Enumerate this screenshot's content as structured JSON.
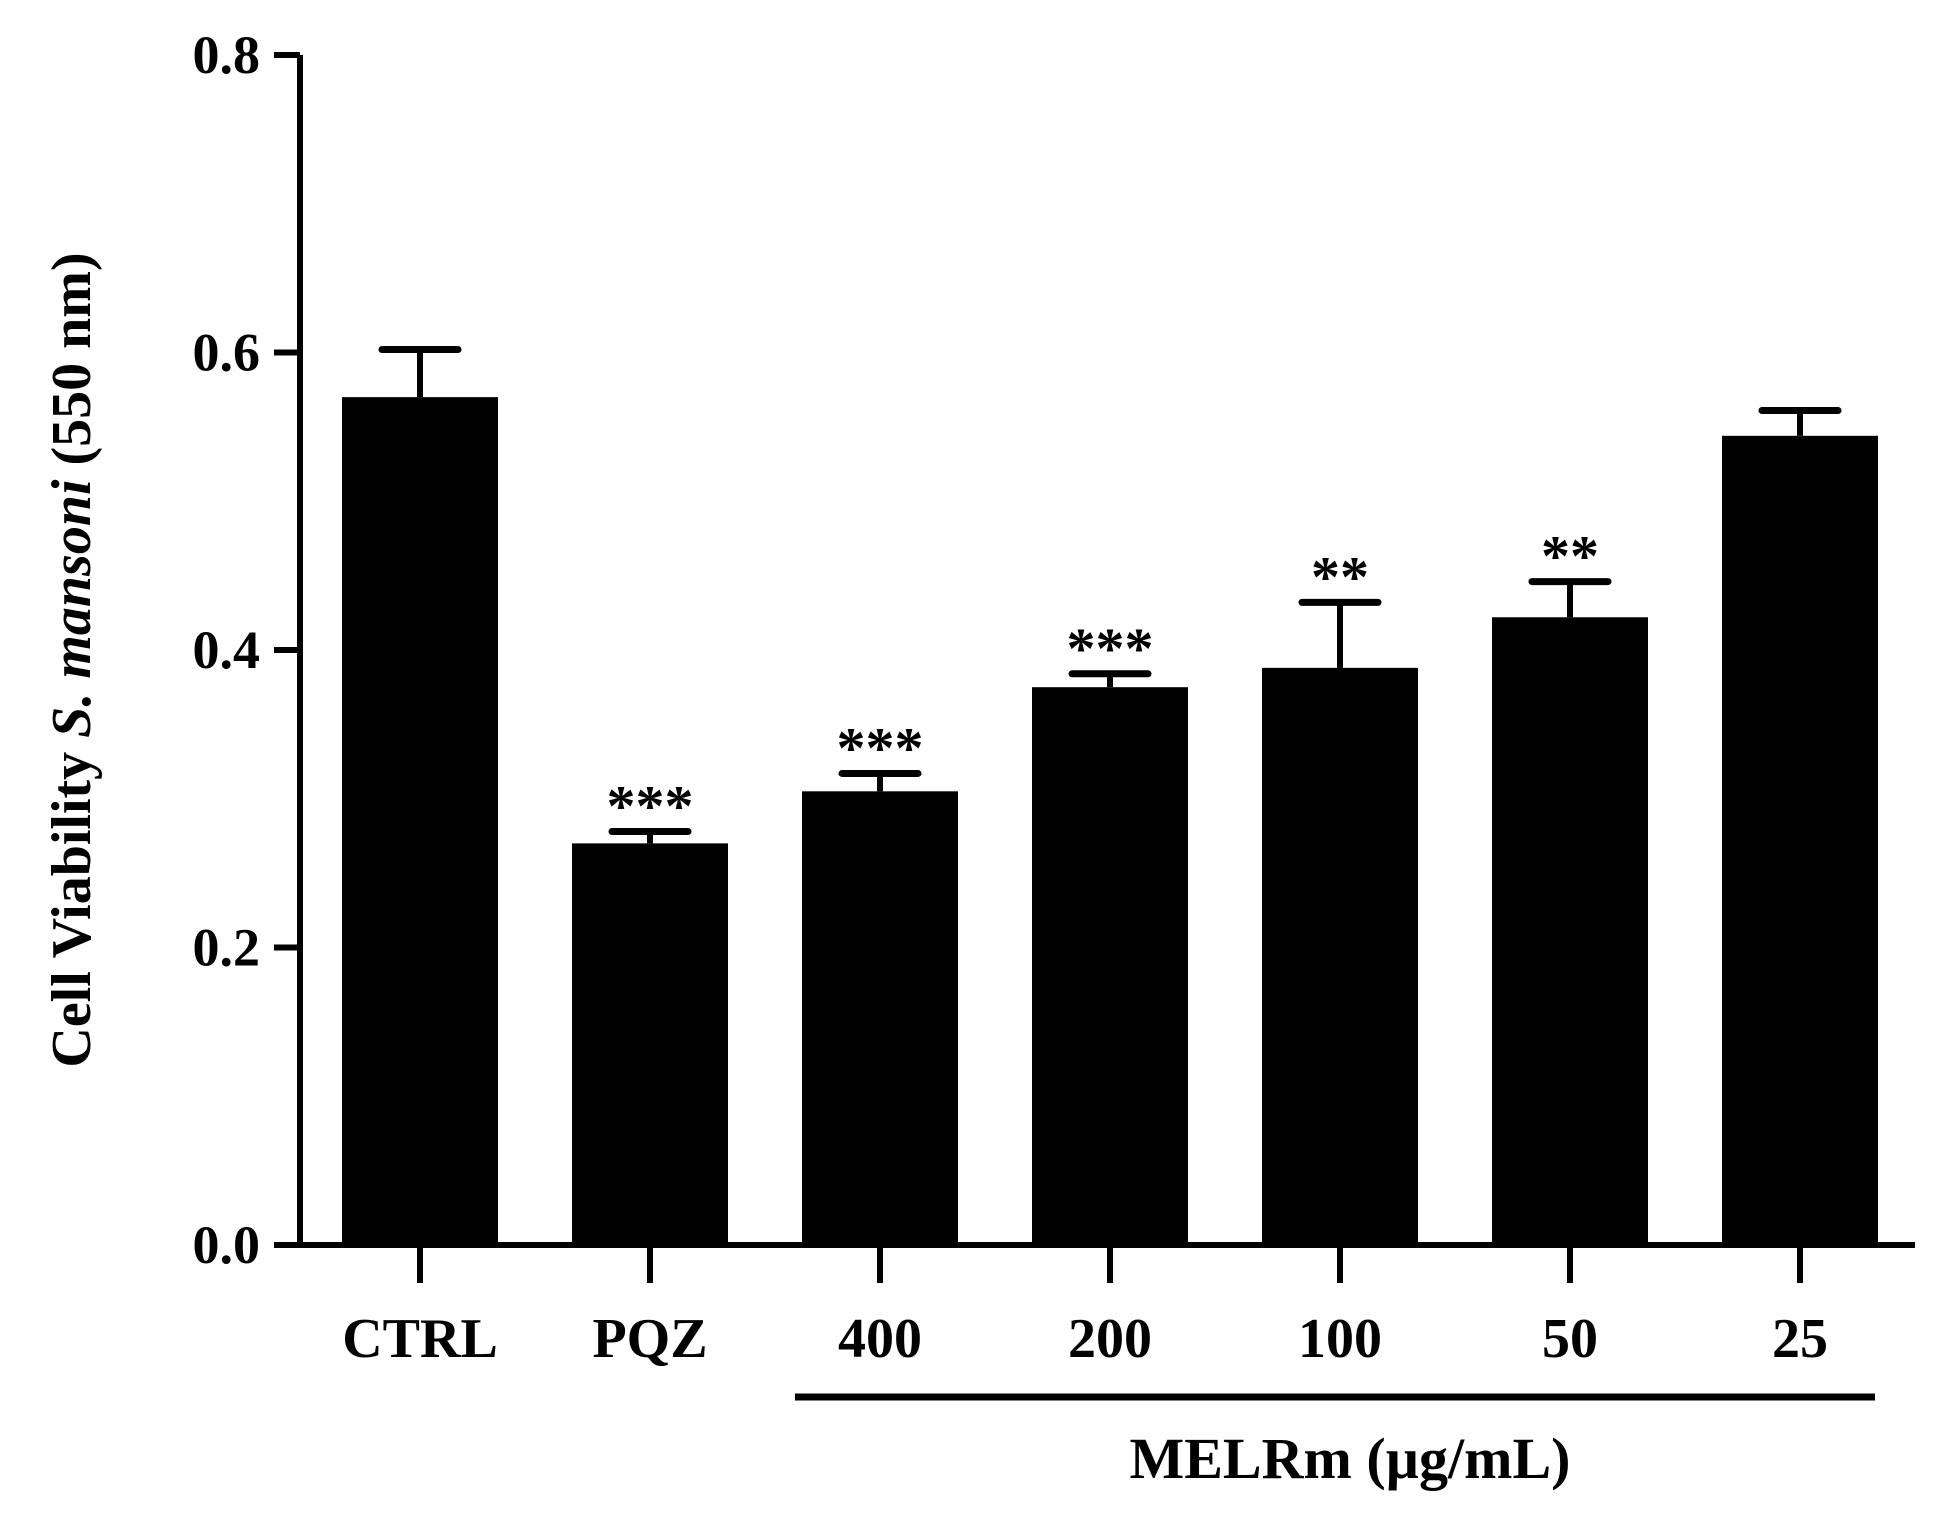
{
  "chart_data": {
    "type": "bar",
    "title": "",
    "xlabel": "",
    "ylabel_parts": [
      "Cell Viability ",
      "S. mansoni",
      " (550 nm)"
    ],
    "ylim": [
      0,
      0.8
    ],
    "yticks": [
      "0.0",
      "0.2",
      "0.4",
      "0.6",
      "0.8"
    ],
    "categories": [
      "CTRL",
      "PQZ",
      "400",
      "200",
      "100",
      "50",
      "25"
    ],
    "values": [
      0.57,
      0.27,
      0.305,
      0.375,
      0.388,
      0.422,
      0.544
    ],
    "errors": [
      0.032,
      0.008,
      0.012,
      0.009,
      0.044,
      0.024,
      0.017
    ],
    "significance": [
      "",
      "***",
      "***",
      "***",
      "**",
      "**",
      ""
    ],
    "group": {
      "label": "MELRm (µg/mL)",
      "from_category": "400",
      "to_category": "25"
    },
    "bar_color": "#000000",
    "grid": false,
    "legend": "none"
  }
}
